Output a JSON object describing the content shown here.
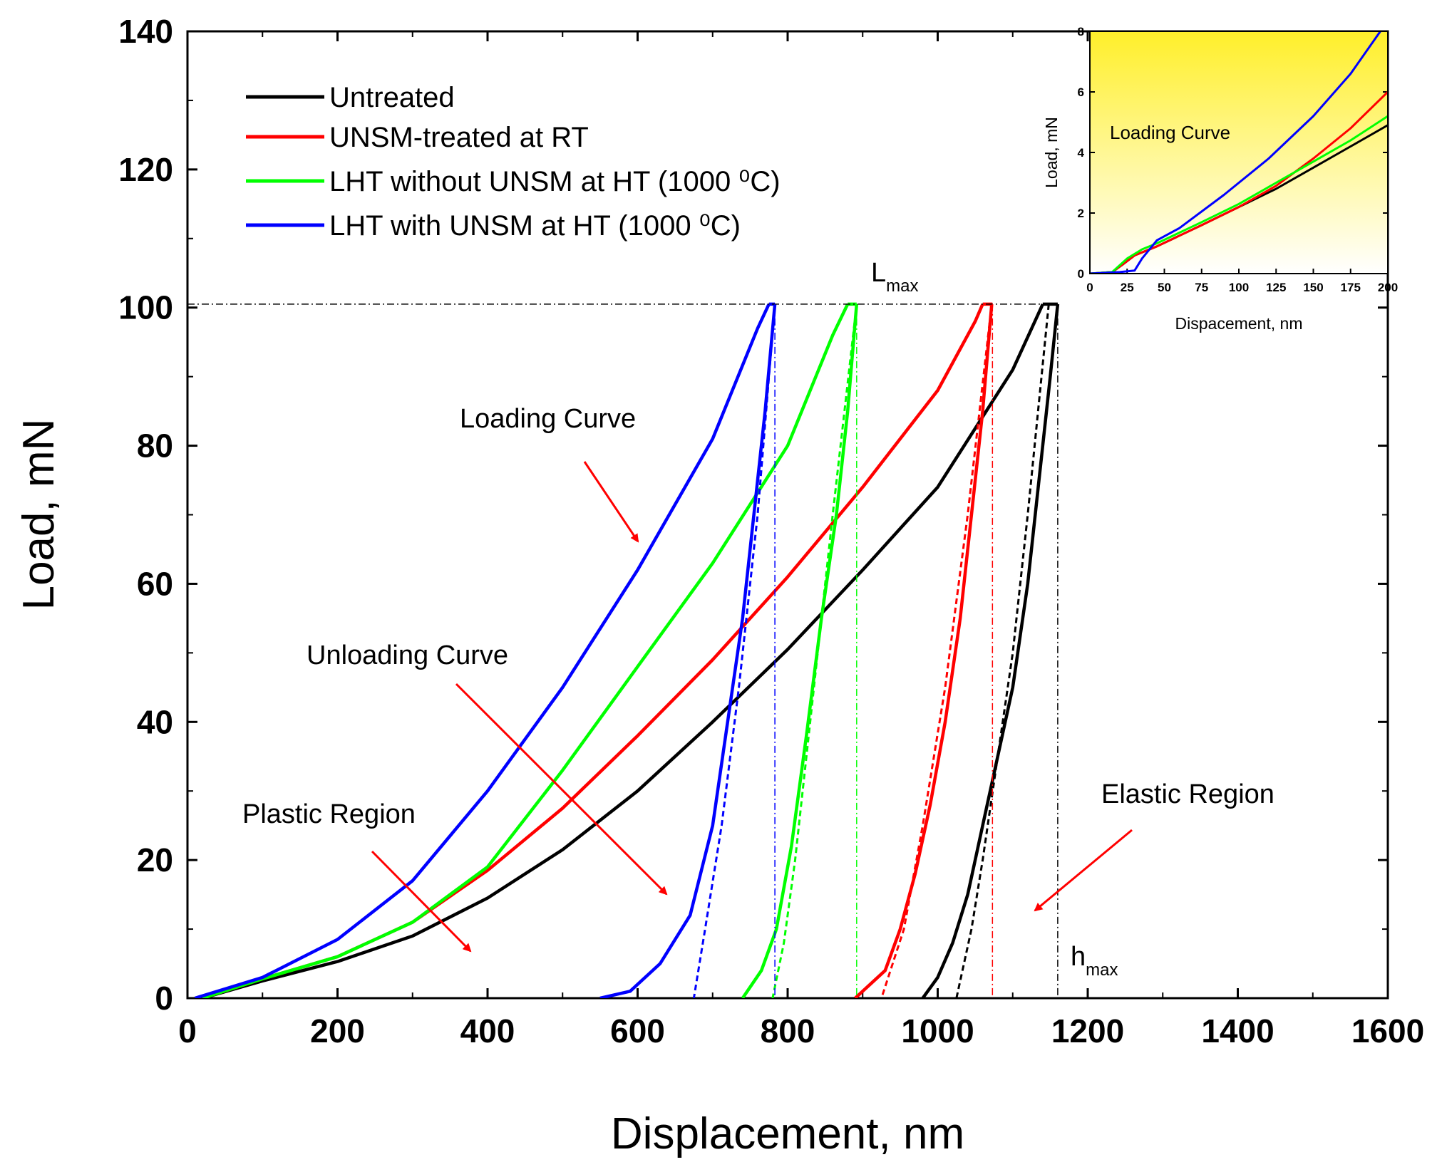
{
  "chart_data": [
    {
      "type": "line",
      "title": "",
      "xlabel": "Displacement, nm",
      "ylabel": "Load, mN",
      "xlim": [
        0,
        1600
      ],
      "ylim": [
        0,
        140
      ],
      "xticks": [
        "0",
        "200",
        "400",
        "600",
        "800",
        "1000",
        "1200",
        "1400",
        "1600"
      ],
      "yticks": [
        "0",
        "20",
        "40",
        "60",
        "80",
        "100",
        "120",
        "140"
      ],
      "legend_position": "top-left",
      "series": [
        {
          "name": "Untreated",
          "color": "#000000",
          "loading": [
            [
              20,
              0
            ],
            [
              100,
              2.5
            ],
            [
              200,
              5.3
            ],
            [
              300,
              9
            ],
            [
              400,
              14.5
            ],
            [
              500,
              21.5
            ],
            [
              600,
              30
            ],
            [
              700,
              40
            ],
            [
              800,
              50.5
            ],
            [
              900,
              62
            ],
            [
              1000,
              74
            ],
            [
              1100,
              91
            ],
            [
              1140,
              100.5
            ]
          ],
          "unloading": [
            [
              1160,
              100.5
            ],
            [
              1150,
              90
            ],
            [
              1135,
              75
            ],
            [
              1120,
              60
            ],
            [
              1100,
              45
            ],
            [
              1080,
              35
            ],
            [
              1060,
              25
            ],
            [
              1040,
              15
            ],
            [
              1020,
              8
            ],
            [
              1000,
              3
            ],
            [
              980,
              0
            ]
          ],
          "unloading_fit": [
            [
              1148,
              100.5
            ],
            [
              1120,
              70
            ],
            [
              1100,
              50
            ],
            [
              1080,
              35
            ],
            [
              1060,
              20
            ],
            [
              1045,
              10
            ],
            [
              1025,
              0
            ]
          ],
          "h_mark": 1160
        },
        {
          "name": "UNSM-treated at RT",
          "color": "#ff0000",
          "loading": [
            [
              20,
              0
            ],
            [
              100,
              2.8
            ],
            [
              200,
              6
            ],
            [
              300,
              11
            ],
            [
              400,
              18.5
            ],
            [
              500,
              27.5
            ],
            [
              600,
              38
            ],
            [
              700,
              49
            ],
            [
              800,
              61
            ],
            [
              900,
              74
            ],
            [
              1000,
              88
            ],
            [
              1050,
              98
            ],
            [
              1060,
              100.5
            ]
          ],
          "unloading": [
            [
              1072,
              100.5
            ],
            [
              1060,
              85
            ],
            [
              1045,
              70
            ],
            [
              1030,
              55
            ],
            [
              1010,
              40
            ],
            [
              990,
              28
            ],
            [
              970,
              18
            ],
            [
              950,
              10
            ],
            [
              930,
              4
            ],
            [
              890,
              0
            ]
          ],
          "unloading_fit": [
            [
              1072,
              100.5
            ],
            [
              1040,
              70
            ],
            [
              1010,
              45
            ],
            [
              980,
              25
            ],
            [
              955,
              10
            ],
            [
              925,
              0
            ]
          ],
          "h_mark": 1073
        },
        {
          "name": "LHT without UNSM at HT (1000 ⁰C)",
          "color": "#00ff00",
          "loading": [
            [
              20,
              0
            ],
            [
              100,
              2.8
            ],
            [
              200,
              6
            ],
            [
              300,
              11
            ],
            [
              400,
              19
            ],
            [
              500,
              33
            ],
            [
              600,
              48
            ],
            [
              700,
              63
            ],
            [
              800,
              80
            ],
            [
              860,
              96
            ],
            [
              880,
              100.5
            ]
          ],
          "unloading": [
            [
              892,
              100.5
            ],
            [
              880,
              85
            ],
            [
              865,
              70
            ],
            [
              845,
              55
            ],
            [
              825,
              38
            ],
            [
              805,
              22
            ],
            [
              785,
              10
            ],
            [
              765,
              4
            ],
            [
              740,
              0
            ]
          ],
          "unloading_fit": [
            [
              892,
              100.5
            ],
            [
              860,
              70
            ],
            [
              830,
              40
            ],
            [
              810,
              20
            ],
            [
              795,
              8
            ],
            [
              780,
              0
            ]
          ],
          "h_mark": 892
        },
        {
          "name": "LHT with UNSM at HT (1000 ⁰C)",
          "color": "#0000ff",
          "loading": [
            [
              10,
              0
            ],
            [
              100,
              3
            ],
            [
              200,
              8.5
            ],
            [
              300,
              17
            ],
            [
              400,
              30
            ],
            [
              500,
              45
            ],
            [
              600,
              62
            ],
            [
              700,
              81
            ],
            [
              760,
              97
            ],
            [
              775,
              100.5
            ]
          ],
          "unloading": [
            [
              783,
              100.5
            ],
            [
              770,
              85
            ],
            [
              755,
              70
            ],
            [
              740,
              55
            ],
            [
              720,
              40
            ],
            [
              700,
              25
            ],
            [
              670,
              12
            ],
            [
              630,
              5
            ],
            [
              590,
              1
            ],
            [
              550,
              0
            ]
          ],
          "unloading_fit": [
            [
              783,
              100.5
            ],
            [
              760,
              70
            ],
            [
              735,
              45
            ],
            [
              712,
              25
            ],
            [
              690,
              10
            ],
            [
              675,
              0
            ]
          ],
          "h_mark": 783
        }
      ],
      "lmax": 100.5,
      "annotations": {
        "lmax_main": "L",
        "lmax_sub": "max",
        "hmax_main": "h",
        "hmax_sub": "max",
        "loading_curve": "Loading Curve",
        "unloading_curve": "Unloading Curve",
        "plastic_region": "Plastic Region",
        "elastic_region": "Elastic Region"
      }
    },
    {
      "type": "line",
      "title": "Loading Curve",
      "xlabel": "Dispacement, nm",
      "ylabel": "Load, mN",
      "xlim": [
        0,
        200
      ],
      "ylim": [
        0,
        8
      ],
      "xticks": [
        "0",
        "25",
        "50",
        "75",
        "100",
        "125",
        "150",
        "175",
        "200"
      ],
      "yticks": [
        "0",
        "2",
        "4",
        "6",
        "8"
      ],
      "series": [
        {
          "name": "Untreated",
          "color": "#000000",
          "values": [
            [
              0,
              0
            ],
            [
              15,
              0.05
            ],
            [
              22,
              0.3
            ],
            [
              30,
              0.6
            ],
            [
              45,
              0.9
            ],
            [
              75,
              1.6
            ],
            [
              100,
              2.2
            ],
            [
              125,
              2.8
            ],
            [
              150,
              3.5
            ],
            [
              175,
              4.2
            ],
            [
              200,
              4.9
            ]
          ]
        },
        {
          "name": "UNSM-treated at RT",
          "color": "#ff0000",
          "values": [
            [
              0,
              0
            ],
            [
              15,
              0.05
            ],
            [
              22,
              0.3
            ],
            [
              30,
              0.6
            ],
            [
              45,
              0.9
            ],
            [
              75,
              1.6
            ],
            [
              100,
              2.2
            ],
            [
              125,
              2.9
            ],
            [
              150,
              3.8
            ],
            [
              175,
              4.8
            ],
            [
              200,
              6.0
            ]
          ]
        },
        {
          "name": "LHT without UNSM at HT (1000 ⁰C)",
          "color": "#00ff00",
          "values": [
            [
              0,
              0
            ],
            [
              15,
              0.05
            ],
            [
              25,
              0.5
            ],
            [
              35,
              0.8
            ],
            [
              45,
              1.0
            ],
            [
              75,
              1.7
            ],
            [
              100,
              2.3
            ],
            [
              125,
              3.0
            ],
            [
              150,
              3.7
            ],
            [
              175,
              4.4
            ],
            [
              200,
              5.2
            ]
          ]
        },
        {
          "name": "LHT with UNSM at HT (1000 ⁰C)",
          "color": "#0000ff",
          "values": [
            [
              0,
              0
            ],
            [
              20,
              0.05
            ],
            [
              30,
              0.1
            ],
            [
              35,
              0.5
            ],
            [
              45,
              1.1
            ],
            [
              60,
              1.5
            ],
            [
              90,
              2.6
            ],
            [
              120,
              3.8
            ],
            [
              150,
              5.2
            ],
            [
              175,
              6.6
            ],
            [
              195,
              8.0
            ]
          ]
        }
      ]
    }
  ]
}
